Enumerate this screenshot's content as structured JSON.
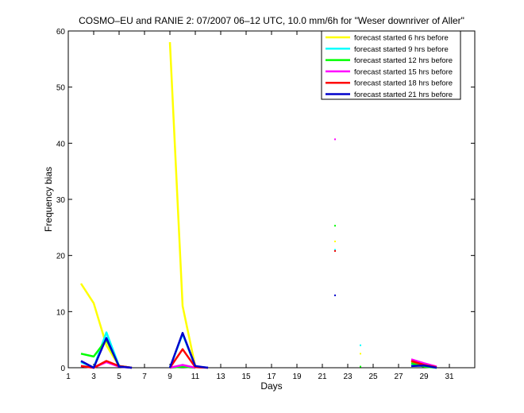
{
  "chart_data": {
    "type": "line",
    "title": "COSMO–EU and RANIE 2: 07/2007 06–12 UTC, 10.0 mm/6h for \"Weser downriver of Aller\"",
    "xlabel": "Days",
    "ylabel": "Frequency bias",
    "xlim": [
      1,
      33
    ],
    "ylim": [
      0,
      60
    ],
    "xticks": [
      1,
      3,
      5,
      7,
      9,
      11,
      13,
      15,
      17,
      19,
      21,
      23,
      25,
      27,
      29,
      31
    ],
    "yticks": [
      0,
      10,
      20,
      30,
      40,
      50,
      60
    ],
    "grid": false,
    "legend_position": "top-right",
    "series": [
      {
        "name": "forecast started 6 hrs before",
        "color": "#ffff00",
        "segments": [
          [
            [
              2,
              15.0
            ],
            [
              3,
              11.5
            ],
            [
              4,
              4.0
            ],
            [
              5,
              0.3
            ],
            [
              6,
              0.0
            ]
          ],
          [
            [
              9,
              58.0
            ],
            [
              10,
              11.0
            ],
            [
              11,
              0.2
            ],
            [
              12,
              0.0
            ]
          ],
          [
            [
              22,
              22.5
            ]
          ],
          [
            [
              24,
              2.5
            ]
          ],
          [
            [
              28,
              1.0
            ],
            [
              29,
              0.5
            ],
            [
              30,
              0.0
            ]
          ]
        ]
      },
      {
        "name": "forecast started 9 hrs before",
        "color": "#00ffff",
        "segments": [
          [
            [
              2,
              1.0
            ],
            [
              3,
              0.0
            ],
            [
              4,
              6.3
            ],
            [
              5,
              0.3
            ],
            [
              6,
              0.0
            ]
          ],
          [
            [
              9,
              0.0
            ],
            [
              10,
              6.0
            ],
            [
              11,
              0.2
            ],
            [
              12,
              0.0
            ]
          ],
          [
            [
              22,
              21.0
            ]
          ],
          [
            [
              24,
              4.0
            ]
          ],
          [
            [
              28,
              0.5
            ],
            [
              29,
              0.3
            ],
            [
              30,
              0.0
            ]
          ]
        ]
      },
      {
        "name": "forecast started 12 hrs before",
        "color": "#00ff00",
        "segments": [
          [
            [
              2,
              2.5
            ],
            [
              3,
              2.0
            ],
            [
              4,
              5.0
            ],
            [
              5,
              0.3
            ],
            [
              6,
              0.0
            ]
          ],
          [
            [
              9,
              0.0
            ],
            [
              10,
              0.2
            ],
            [
              11,
              0.0
            ]
          ],
          [
            [
              22,
              25.3
            ]
          ],
          [
            [
              24,
              0.2
            ]
          ],
          [
            [
              28,
              0.8
            ],
            [
              29,
              0.2
            ],
            [
              30,
              0.0
            ]
          ]
        ]
      },
      {
        "name": "forecast started 15 hrs before",
        "color": "#ff00ff",
        "segments": [
          [
            [
              2,
              0.3
            ],
            [
              3,
              0.0
            ],
            [
              4,
              1.0
            ],
            [
              5,
              0.2
            ],
            [
              6,
              0.0
            ]
          ],
          [
            [
              9,
              0.0
            ],
            [
              10,
              0.5
            ],
            [
              11,
              0.0
            ]
          ],
          [
            [
              22,
              40.7
            ]
          ],
          [
            [
              28,
              1.5
            ],
            [
              29,
              0.8
            ],
            [
              30,
              0.2
            ]
          ]
        ]
      },
      {
        "name": "forecast started 18 hrs before",
        "color": "#ff0000",
        "segments": [
          [
            [
              2,
              0.3
            ],
            [
              3,
              0.0
            ],
            [
              4,
              1.2
            ],
            [
              5,
              0.3
            ],
            [
              6,
              0.0
            ]
          ],
          [
            [
              9,
              0.0
            ],
            [
              10,
              3.3
            ],
            [
              11,
              0.1
            ],
            [
              12,
              0.0
            ]
          ],
          [
            [
              22,
              20.8
            ]
          ],
          [
            [
              28,
              1.2
            ],
            [
              29,
              0.5
            ],
            [
              30,
              0.1
            ]
          ]
        ]
      },
      {
        "name": "forecast started 21 hrs before",
        "color": "#0000cc",
        "segments": [
          [
            [
              2,
              1.2
            ],
            [
              3,
              0.0
            ],
            [
              4,
              5.3
            ],
            [
              5,
              0.2
            ],
            [
              6,
              0.0
            ]
          ],
          [
            [
              9,
              0.0
            ],
            [
              10,
              6.2
            ],
            [
              11,
              0.3
            ],
            [
              12,
              0.0
            ]
          ],
          [
            [
              22,
              12.9
            ]
          ],
          [
            [
              28,
              0.3
            ],
            [
              29,
              0.4
            ],
            [
              30,
              0.0
            ]
          ]
        ]
      }
    ]
  }
}
